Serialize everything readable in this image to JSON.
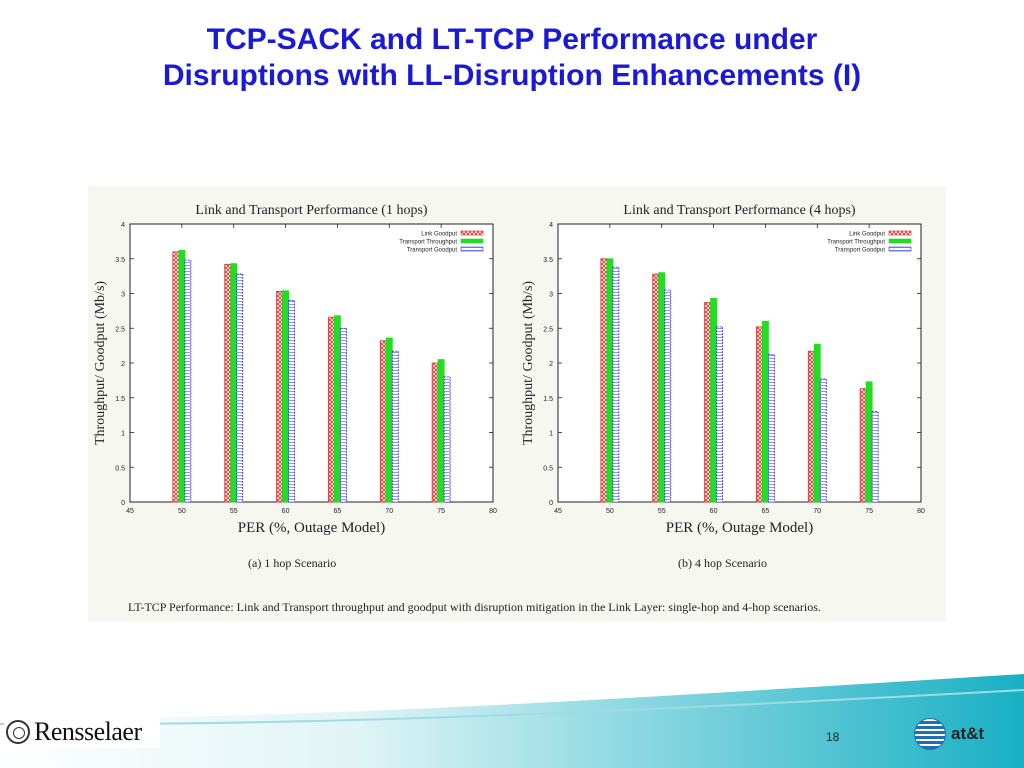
{
  "slide": {
    "title_line1": "TCP-SACK and LT-TCP Performance under",
    "title_line2": "Disruptions with LL-Disruption Enhancements (I)",
    "page_number": "18",
    "logo_left": "Rensselaer",
    "logo_right": "at&t"
  },
  "figure": {
    "caption": "LT-TCP Performance: Link and Transport throughput and goodput with disruption mitigation in the Link Layer: single-hop and 4-hop scenarios."
  },
  "colors": {
    "title": "#1a1ad6",
    "link_goodput": "#e03030",
    "transport_throughput": "#22dd22",
    "transport_goodput": "#2a2aee",
    "footer_teal": "#20b8c8"
  },
  "chart_data": [
    {
      "type": "bar",
      "title": "Link and Transport Performance (1 hops)",
      "subcaption": "(a) 1 hop Scenario",
      "xlabel": "PER (%, Outage Model)",
      "ylabel": "Throughput/ Goodput (Mb/s)",
      "xlim": [
        45,
        80
      ],
      "ylim": [
        0,
        4
      ],
      "xticks": [
        "45",
        "50",
        "55",
        "60",
        "65",
        "70",
        "75",
        "80"
      ],
      "yticks": [
        "0",
        "0.5",
        "1",
        "1.5",
        "2",
        "2.5",
        "3",
        "3.5",
        "4"
      ],
      "categories": [
        50,
        55,
        60,
        65,
        70,
        75
      ],
      "legend_position": "top-right",
      "series": [
        {
          "name": "Link Goodput",
          "values": [
            3.6,
            3.42,
            3.03,
            2.66,
            2.32,
            2.0
          ]
        },
        {
          "name": "Transport Throughput",
          "values": [
            3.62,
            3.43,
            3.04,
            2.68,
            2.36,
            2.05
          ]
        },
        {
          "name": "Transport Goodput",
          "values": [
            3.48,
            3.28,
            2.9,
            2.5,
            2.17,
            1.8
          ]
        }
      ]
    },
    {
      "type": "bar",
      "title": "Link and Transport Performance (4 hops)",
      "subcaption": "(b) 4 hop Scenario",
      "xlabel": "PER (%, Outage Model)",
      "ylabel": "Throughput/ Goodput (Mb/s)",
      "xlim": [
        45,
        80
      ],
      "ylim": [
        0,
        4
      ],
      "xticks": [
        "45",
        "50",
        "55",
        "60",
        "65",
        "70",
        "75",
        "80"
      ],
      "yticks": [
        "0",
        "0.5",
        "1",
        "1.5",
        "2",
        "2.5",
        "3",
        "3.5",
        "4"
      ],
      "categories": [
        50,
        55,
        60,
        65,
        70,
        75
      ],
      "legend_position": "top-right",
      "series": [
        {
          "name": "Link Goodput",
          "values": [
            3.5,
            3.28,
            2.87,
            2.52,
            2.17,
            1.63
          ]
        },
        {
          "name": "Transport Throughput",
          "values": [
            3.5,
            3.3,
            2.93,
            2.6,
            2.27,
            1.73
          ]
        },
        {
          "name": "Transport Goodput",
          "values": [
            3.38,
            3.05,
            2.52,
            2.12,
            1.77,
            1.3
          ]
        }
      ]
    }
  ]
}
